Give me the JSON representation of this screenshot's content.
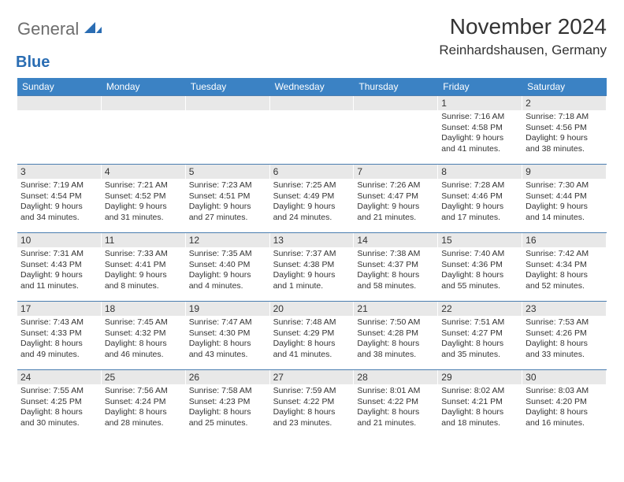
{
  "brand": {
    "general": "General",
    "blue": "Blue"
  },
  "title": "November 2024",
  "location": "Reinhardshausen, Germany",
  "colors": {
    "header_bar": "#3b82c4",
    "daynum_bg": "#e8e8e8",
    "row_border": "#4a7db0",
    "text": "#333333",
    "logo_gray": "#6d6d6d",
    "logo_blue": "#2a6db3"
  },
  "weekdays": [
    "Sunday",
    "Monday",
    "Tuesday",
    "Wednesday",
    "Thursday",
    "Friday",
    "Saturday"
  ],
  "weeks": [
    [
      {
        "n": "",
        "sunrise": "",
        "sunset": "",
        "daylight": ""
      },
      {
        "n": "",
        "sunrise": "",
        "sunset": "",
        "daylight": ""
      },
      {
        "n": "",
        "sunrise": "",
        "sunset": "",
        "daylight": ""
      },
      {
        "n": "",
        "sunrise": "",
        "sunset": "",
        "daylight": ""
      },
      {
        "n": "",
        "sunrise": "",
        "sunset": "",
        "daylight": ""
      },
      {
        "n": "1",
        "sunrise": "Sunrise: 7:16 AM",
        "sunset": "Sunset: 4:58 PM",
        "daylight": "Daylight: 9 hours and 41 minutes."
      },
      {
        "n": "2",
        "sunrise": "Sunrise: 7:18 AM",
        "sunset": "Sunset: 4:56 PM",
        "daylight": "Daylight: 9 hours and 38 minutes."
      }
    ],
    [
      {
        "n": "3",
        "sunrise": "Sunrise: 7:19 AM",
        "sunset": "Sunset: 4:54 PM",
        "daylight": "Daylight: 9 hours and 34 minutes."
      },
      {
        "n": "4",
        "sunrise": "Sunrise: 7:21 AM",
        "sunset": "Sunset: 4:52 PM",
        "daylight": "Daylight: 9 hours and 31 minutes."
      },
      {
        "n": "5",
        "sunrise": "Sunrise: 7:23 AM",
        "sunset": "Sunset: 4:51 PM",
        "daylight": "Daylight: 9 hours and 27 minutes."
      },
      {
        "n": "6",
        "sunrise": "Sunrise: 7:25 AM",
        "sunset": "Sunset: 4:49 PM",
        "daylight": "Daylight: 9 hours and 24 minutes."
      },
      {
        "n": "7",
        "sunrise": "Sunrise: 7:26 AM",
        "sunset": "Sunset: 4:47 PM",
        "daylight": "Daylight: 9 hours and 21 minutes."
      },
      {
        "n": "8",
        "sunrise": "Sunrise: 7:28 AM",
        "sunset": "Sunset: 4:46 PM",
        "daylight": "Daylight: 9 hours and 17 minutes."
      },
      {
        "n": "9",
        "sunrise": "Sunrise: 7:30 AM",
        "sunset": "Sunset: 4:44 PM",
        "daylight": "Daylight: 9 hours and 14 minutes."
      }
    ],
    [
      {
        "n": "10",
        "sunrise": "Sunrise: 7:31 AM",
        "sunset": "Sunset: 4:43 PM",
        "daylight": "Daylight: 9 hours and 11 minutes."
      },
      {
        "n": "11",
        "sunrise": "Sunrise: 7:33 AM",
        "sunset": "Sunset: 4:41 PM",
        "daylight": "Daylight: 9 hours and 8 minutes."
      },
      {
        "n": "12",
        "sunrise": "Sunrise: 7:35 AM",
        "sunset": "Sunset: 4:40 PM",
        "daylight": "Daylight: 9 hours and 4 minutes."
      },
      {
        "n": "13",
        "sunrise": "Sunrise: 7:37 AM",
        "sunset": "Sunset: 4:38 PM",
        "daylight": "Daylight: 9 hours and 1 minute."
      },
      {
        "n": "14",
        "sunrise": "Sunrise: 7:38 AM",
        "sunset": "Sunset: 4:37 PM",
        "daylight": "Daylight: 8 hours and 58 minutes."
      },
      {
        "n": "15",
        "sunrise": "Sunrise: 7:40 AM",
        "sunset": "Sunset: 4:36 PM",
        "daylight": "Daylight: 8 hours and 55 minutes."
      },
      {
        "n": "16",
        "sunrise": "Sunrise: 7:42 AM",
        "sunset": "Sunset: 4:34 PM",
        "daylight": "Daylight: 8 hours and 52 minutes."
      }
    ],
    [
      {
        "n": "17",
        "sunrise": "Sunrise: 7:43 AM",
        "sunset": "Sunset: 4:33 PM",
        "daylight": "Daylight: 8 hours and 49 minutes."
      },
      {
        "n": "18",
        "sunrise": "Sunrise: 7:45 AM",
        "sunset": "Sunset: 4:32 PM",
        "daylight": "Daylight: 8 hours and 46 minutes."
      },
      {
        "n": "19",
        "sunrise": "Sunrise: 7:47 AM",
        "sunset": "Sunset: 4:30 PM",
        "daylight": "Daylight: 8 hours and 43 minutes."
      },
      {
        "n": "20",
        "sunrise": "Sunrise: 7:48 AM",
        "sunset": "Sunset: 4:29 PM",
        "daylight": "Daylight: 8 hours and 41 minutes."
      },
      {
        "n": "21",
        "sunrise": "Sunrise: 7:50 AM",
        "sunset": "Sunset: 4:28 PM",
        "daylight": "Daylight: 8 hours and 38 minutes."
      },
      {
        "n": "22",
        "sunrise": "Sunrise: 7:51 AM",
        "sunset": "Sunset: 4:27 PM",
        "daylight": "Daylight: 8 hours and 35 minutes."
      },
      {
        "n": "23",
        "sunrise": "Sunrise: 7:53 AM",
        "sunset": "Sunset: 4:26 PM",
        "daylight": "Daylight: 8 hours and 33 minutes."
      }
    ],
    [
      {
        "n": "24",
        "sunrise": "Sunrise: 7:55 AM",
        "sunset": "Sunset: 4:25 PM",
        "daylight": "Daylight: 8 hours and 30 minutes."
      },
      {
        "n": "25",
        "sunrise": "Sunrise: 7:56 AM",
        "sunset": "Sunset: 4:24 PM",
        "daylight": "Daylight: 8 hours and 28 minutes."
      },
      {
        "n": "26",
        "sunrise": "Sunrise: 7:58 AM",
        "sunset": "Sunset: 4:23 PM",
        "daylight": "Daylight: 8 hours and 25 minutes."
      },
      {
        "n": "27",
        "sunrise": "Sunrise: 7:59 AM",
        "sunset": "Sunset: 4:22 PM",
        "daylight": "Daylight: 8 hours and 23 minutes."
      },
      {
        "n": "28",
        "sunrise": "Sunrise: 8:01 AM",
        "sunset": "Sunset: 4:22 PM",
        "daylight": "Daylight: 8 hours and 21 minutes."
      },
      {
        "n": "29",
        "sunrise": "Sunrise: 8:02 AM",
        "sunset": "Sunset: 4:21 PM",
        "daylight": "Daylight: 8 hours and 18 minutes."
      },
      {
        "n": "30",
        "sunrise": "Sunrise: 8:03 AM",
        "sunset": "Sunset: 4:20 PM",
        "daylight": "Daylight: 8 hours and 16 minutes."
      }
    ]
  ]
}
